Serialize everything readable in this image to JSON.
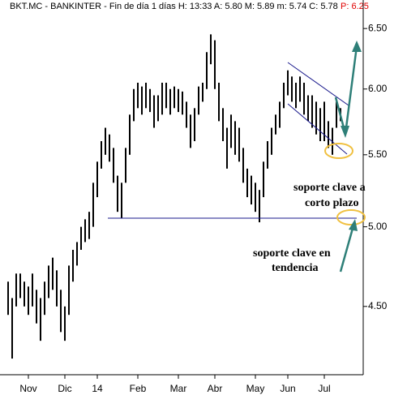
{
  "chart_data": {
    "type": "ohlc",
    "title": "BKT.MC - BANKINTER - Fin de día 1 días  H: 13:33  A: 5.80  M: 5.89  m: 5.74  C: 5.78",
    "title_alert": "P: 6.25",
    "annotations": [
      "soporte clave a",
      "corto plazo",
      "soporte clave en",
      "tendencia"
    ],
    "categories": [
      null,
      null,
      null,
      null,
      null,
      "Nov",
      null,
      null,
      null,
      null,
      null,
      null,
      null,
      null,
      "Dic",
      null,
      null,
      null,
      null,
      null,
      null,
      null,
      "14",
      null,
      null,
      null,
      null,
      null,
      null,
      null,
      null,
      null,
      "Feb",
      null,
      null,
      null,
      null,
      null,
      null,
      null,
      null,
      null,
      "Mar",
      null,
      null,
      null,
      null,
      null,
      null,
      null,
      null,
      "Abr",
      null,
      null,
      null,
      null,
      null,
      null,
      null,
      null,
      null,
      "May",
      null,
      null,
      null,
      null,
      null,
      null,
      null,
      "Jun",
      null,
      null,
      null,
      null,
      null,
      null,
      null,
      null,
      "Jul",
      null,
      null,
      null,
      null
    ],
    "high": [
      4.65,
      4.55,
      4.7,
      4.7,
      4.65,
      4.62,
      4.7,
      4.6,
      4.55,
      4.65,
      4.75,
      4.8,
      4.72,
      4.6,
      4.5,
      4.75,
      4.85,
      4.9,
      5.0,
      5.05,
      5.1,
      5.3,
      5.45,
      5.6,
      5.7,
      5.65,
      5.55,
      5.35,
      5.3,
      5.55,
      5.8,
      6.0,
      6.05,
      6.02,
      6.05,
      6.0,
      5.95,
      5.95,
      6.05,
      6.05,
      6.0,
      6.02,
      6.0,
      5.98,
      5.9,
      5.8,
      5.85,
      6.02,
      6.05,
      6.3,
      6.45,
      6.4,
      6.05,
      5.85,
      5.7,
      5.8,
      5.75,
      5.7,
      5.55,
      5.4,
      5.35,
      5.3,
      5.25,
      5.45,
      5.6,
      5.7,
      5.8,
      5.9,
      6.05,
      6.15,
      6.1,
      6.05,
      6.1,
      6.05,
      5.95,
      5.95,
      5.9,
      5.85,
      5.9,
      5.75,
      5.7,
      5.9,
      5.85
    ],
    "low": [
      4.45,
      4.2,
      4.5,
      4.55,
      4.5,
      4.45,
      4.5,
      4.4,
      4.3,
      4.45,
      4.55,
      4.6,
      4.5,
      4.35,
      4.3,
      4.45,
      4.65,
      4.75,
      4.85,
      4.9,
      4.92,
      5.0,
      5.2,
      5.4,
      5.5,
      5.45,
      5.3,
      5.1,
      5.06,
      5.3,
      5.5,
      5.75,
      5.85,
      5.8,
      5.85,
      5.82,
      5.7,
      5.75,
      5.8,
      5.85,
      5.8,
      5.85,
      5.82,
      5.8,
      5.7,
      5.55,
      5.6,
      5.8,
      5.9,
      6.0,
      6.2,
      6.0,
      5.75,
      5.6,
      5.4,
      5.55,
      5.5,
      5.45,
      5.3,
      5.2,
      5.15,
      5.1,
      5.03,
      5.2,
      5.4,
      5.5,
      5.65,
      5.7,
      5.85,
      5.95,
      5.9,
      5.85,
      5.9,
      5.8,
      5.75,
      5.7,
      5.65,
      5.6,
      5.6,
      5.55,
      5.5,
      5.7,
      5.75
    ],
    "color": "#000000",
    "log_scale": true,
    "ylim": [
      4.12,
      6.75
    ],
    "yticks": [
      {
        "value": 4.5,
        "label": "4.50"
      },
      {
        "value": 5,
        "label": "5.00"
      },
      {
        "value": 5.5,
        "label": "5.50"
      },
      {
        "value": 6,
        "label": "6.00"
      },
      {
        "value": 6.5,
        "label": "6.50"
      }
    ]
  }
}
